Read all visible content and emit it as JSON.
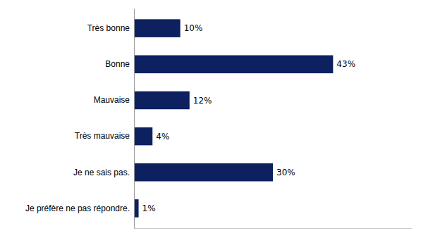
{
  "chart_data": {
    "type": "bar",
    "orientation": "horizontal",
    "categories": [
      "Très bonne",
      "Bonne",
      "Mauvaise",
      "Très mauvaise",
      "Je ne sais pas.",
      "Je préfère ne pas répondre."
    ],
    "values": [
      10,
      43,
      12,
      4,
      30,
      1
    ],
    "value_labels": [
      "10%",
      "43%",
      "12%",
      "4%",
      "30%",
      "1%"
    ],
    "data_labels": true,
    "color": "#0d2060",
    "xlim": [
      0,
      60
    ],
    "tick_labels": "y",
    "grid": false
  }
}
